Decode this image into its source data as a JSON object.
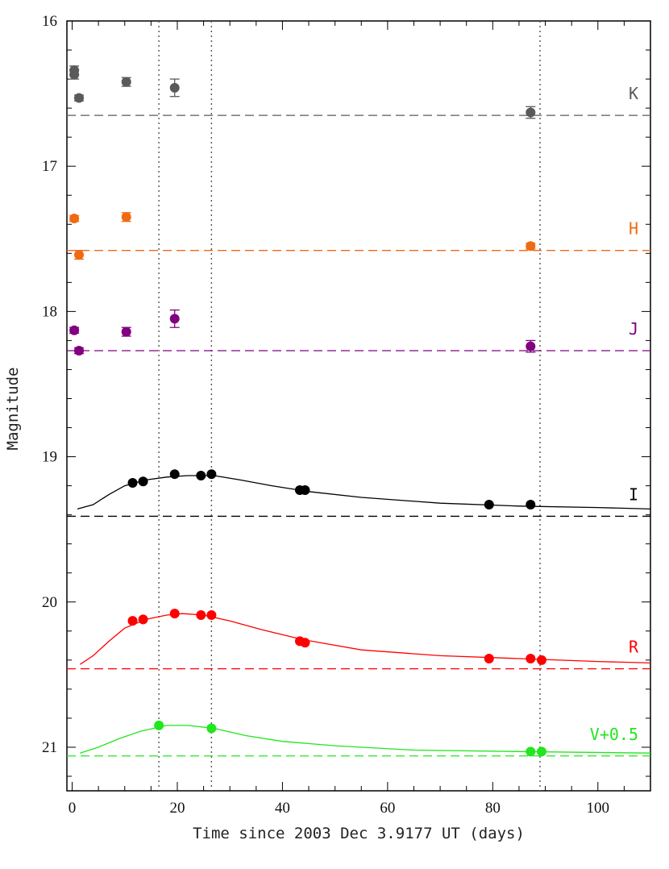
{
  "chart_data": {
    "type": "scatter",
    "xlabel": "Time since 2003 Dec 3.9177 UT (days)",
    "ylabel": "Magnitude",
    "xlim": [
      -1,
      110
    ],
    "ylim": [
      21.3,
      16
    ],
    "y_inverted": true,
    "x_ticks": [
      0,
      20,
      40,
      60,
      80,
      100
    ],
    "y_ticks": [
      16,
      17,
      18,
      19,
      20,
      21
    ],
    "grid": false,
    "vertical_markers": [
      16.5,
      26.5,
      89.0
    ],
    "series": [
      {
        "name": "K",
        "color": "#5a5a5a",
        "baseline": 16.65,
        "points": [
          {
            "x": 0.4,
            "y": 16.34,
            "err": 0.03
          },
          {
            "x": 0.4,
            "y": 16.37,
            "err": 0.03
          },
          {
            "x": 1.3,
            "y": 16.53,
            "err": 0.02
          },
          {
            "x": 10.3,
            "y": 16.42,
            "err": 0.03
          },
          {
            "x": 19.5,
            "y": 16.46,
            "err": 0.06
          },
          {
            "x": 87.2,
            "y": 16.63,
            "err": 0.04
          }
        ]
      },
      {
        "name": "H",
        "color": "#f06a12",
        "baseline": 17.58,
        "points": [
          {
            "x": 0.4,
            "y": 17.36,
            "err": 0.02
          },
          {
            "x": 1.3,
            "y": 17.61,
            "err": 0.03
          },
          {
            "x": 10.3,
            "y": 17.35,
            "err": 0.03
          },
          {
            "x": 87.2,
            "y": 17.55,
            "err": 0.02
          }
        ]
      },
      {
        "name": "J",
        "color": "#800080",
        "baseline": 18.27,
        "points": [
          {
            "x": 0.4,
            "y": 18.13,
            "err": 0.02
          },
          {
            "x": 1.3,
            "y": 18.27,
            "err": 0.02
          },
          {
            "x": 10.3,
            "y": 18.14,
            "err": 0.03
          },
          {
            "x": 19.5,
            "y": 18.05,
            "err": 0.06
          },
          {
            "x": 87.2,
            "y": 18.24,
            "err": 0.04
          }
        ]
      },
      {
        "name": "I",
        "color": "#000000",
        "baseline": 19.41,
        "points": [
          {
            "x": 11.5,
            "y": 19.18
          },
          {
            "x": 13.5,
            "y": 19.17
          },
          {
            "x": 19.5,
            "y": 19.12
          },
          {
            "x": 24.5,
            "y": 19.13
          },
          {
            "x": 26.5,
            "y": 19.12
          },
          {
            "x": 43.3,
            "y": 19.23
          },
          {
            "x": 44.3,
            "y": 19.23
          },
          {
            "x": 79.3,
            "y": 19.33
          },
          {
            "x": 87.2,
            "y": 19.33
          }
        ],
        "model": [
          {
            "x": 1.0,
            "y": 19.36
          },
          {
            "x": 4,
            "y": 19.33
          },
          {
            "x": 7,
            "y": 19.26
          },
          {
            "x": 10,
            "y": 19.2
          },
          {
            "x": 14,
            "y": 19.16
          },
          {
            "x": 18,
            "y": 19.14
          },
          {
            "x": 22,
            "y": 19.13
          },
          {
            "x": 27,
            "y": 19.13
          },
          {
            "x": 32,
            "y": 19.16
          },
          {
            "x": 38,
            "y": 19.2
          },
          {
            "x": 45,
            "y": 19.24
          },
          {
            "x": 55,
            "y": 19.28
          },
          {
            "x": 70,
            "y": 19.32
          },
          {
            "x": 85,
            "y": 19.34
          },
          {
            "x": 100,
            "y": 19.35
          },
          {
            "x": 110,
            "y": 19.36
          }
        ]
      },
      {
        "name": "R",
        "color": "#ff0000",
        "baseline": 20.46,
        "points": [
          {
            "x": 11.5,
            "y": 20.13
          },
          {
            "x": 13.5,
            "y": 20.12
          },
          {
            "x": 19.5,
            "y": 20.08
          },
          {
            "x": 24.5,
            "y": 20.09
          },
          {
            "x": 26.5,
            "y": 20.09
          },
          {
            "x": 43.3,
            "y": 20.27
          },
          {
            "x": 44.3,
            "y": 20.28
          },
          {
            "x": 79.3,
            "y": 20.39
          },
          {
            "x": 87.2,
            "y": 20.39
          },
          {
            "x": 89.3,
            "y": 20.4
          }
        ],
        "model": [
          {
            "x": 1.5,
            "y": 20.43
          },
          {
            "x": 4,
            "y": 20.37
          },
          {
            "x": 7,
            "y": 20.27
          },
          {
            "x": 10,
            "y": 20.18
          },
          {
            "x": 14,
            "y": 20.12
          },
          {
            "x": 18,
            "y": 20.09
          },
          {
            "x": 21,
            "y": 20.08
          },
          {
            "x": 25,
            "y": 20.09
          },
          {
            "x": 30,
            "y": 20.13
          },
          {
            "x": 36,
            "y": 20.19
          },
          {
            "x": 44,
            "y": 20.26
          },
          {
            "x": 55,
            "y": 20.33
          },
          {
            "x": 70,
            "y": 20.37
          },
          {
            "x": 85,
            "y": 20.39
          },
          {
            "x": 100,
            "y": 20.41
          },
          {
            "x": 110,
            "y": 20.42
          }
        ]
      },
      {
        "name": "V+0.5",
        "color": "#22e61e",
        "baseline": 21.06,
        "points": [
          {
            "x": 16.5,
            "y": 20.85
          },
          {
            "x": 26.5,
            "y": 20.87
          },
          {
            "x": 87.2,
            "y": 21.03
          },
          {
            "x": 89.3,
            "y": 21.03
          }
        ],
        "model": [
          {
            "x": 1.5,
            "y": 21.04
          },
          {
            "x": 5,
            "y": 21.0
          },
          {
            "x": 9,
            "y": 20.94
          },
          {
            "x": 13,
            "y": 20.89
          },
          {
            "x": 18,
            "y": 20.85
          },
          {
            "x": 22,
            "y": 20.85
          },
          {
            "x": 27,
            "y": 20.87
          },
          {
            "x": 33,
            "y": 20.92
          },
          {
            "x": 40,
            "y": 20.96
          },
          {
            "x": 50,
            "y": 20.99
          },
          {
            "x": 65,
            "y": 21.02
          },
          {
            "x": 85,
            "y": 21.03
          },
          {
            "x": 110,
            "y": 21.04
          }
        ]
      }
    ]
  }
}
